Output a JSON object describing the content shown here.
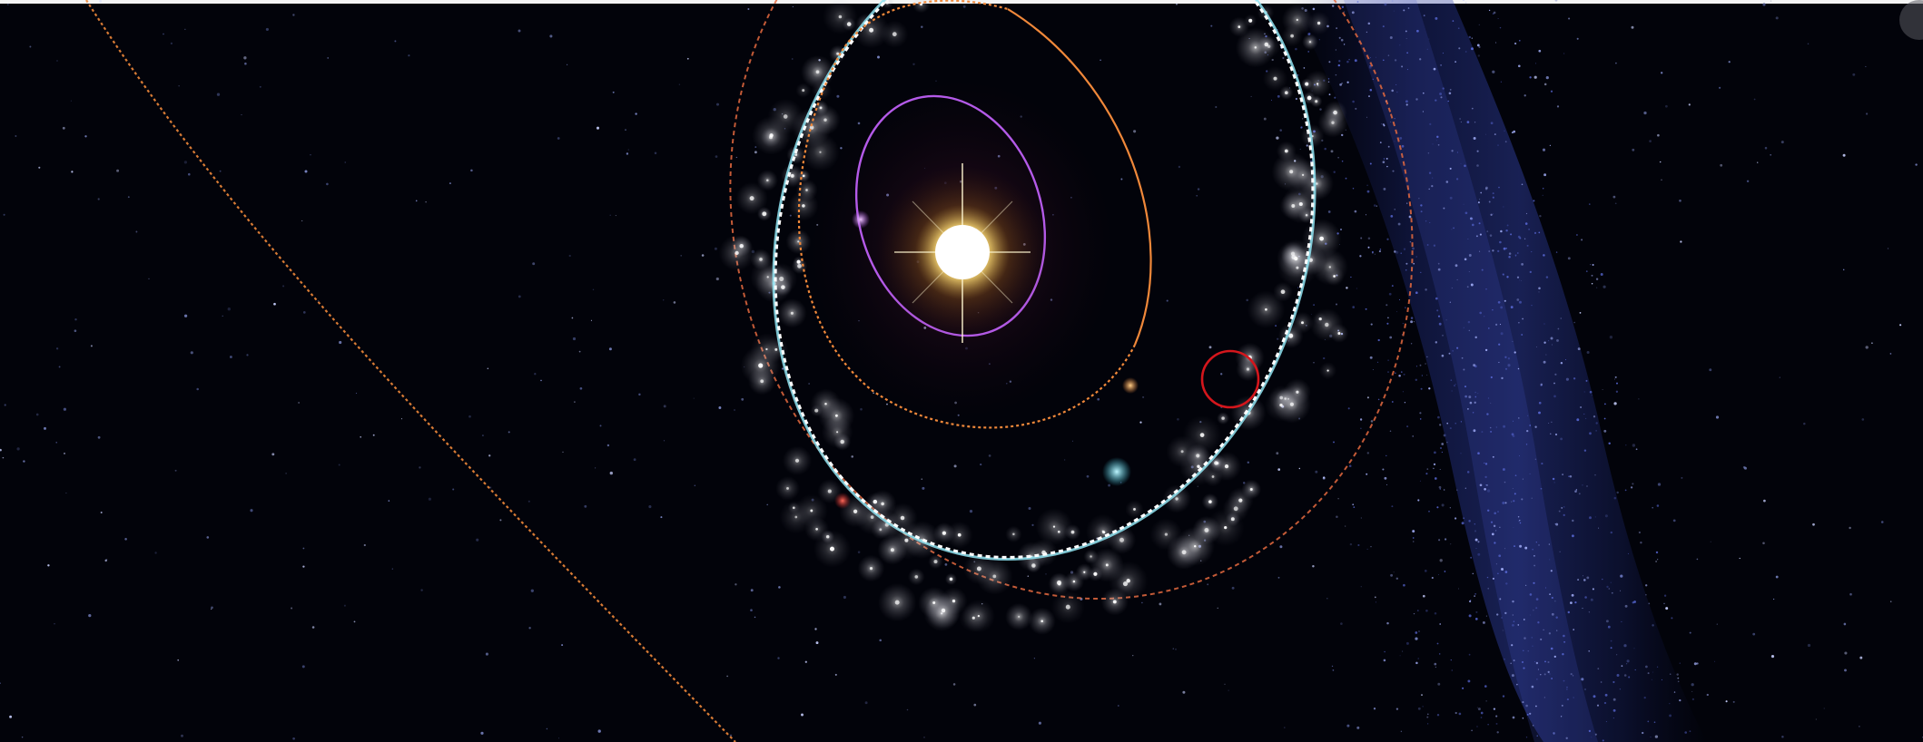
{
  "app": {
    "title": ""
  },
  "colors": {
    "space_background": "#02030a",
    "sun_core": "#ffffff",
    "sun_glow": "#f6d36b",
    "milky_way": "#3a4cc0",
    "orbit_mercury": "#b45ae8",
    "orbit_venus": "#f0883a",
    "orbit_earth": "#8fe4f2",
    "orbit_mars": "#e56a40",
    "orbit_outer": "#f0883a",
    "target_circle": "#d4161c",
    "top_bar": "#f4f4f4"
  },
  "icons": {
    "sun": "sun-icon",
    "target": "target-circle-icon",
    "corner": "corner-control-icon"
  },
  "scene": {
    "objects": [
      "sun",
      "mercury-orbit",
      "venus-orbit",
      "earth-orbit",
      "mars-orbit",
      "outer-planet-orbit",
      "asteroid-cluster",
      "milky-way-band",
      "target-marker"
    ]
  }
}
